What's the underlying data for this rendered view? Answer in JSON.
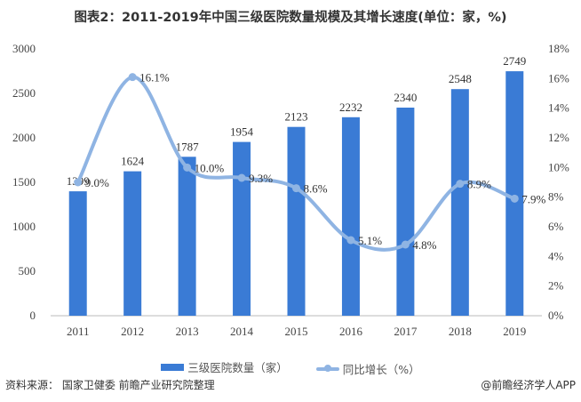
{
  "title": "图表2：2011-2019年中国三级医院数量规模及其增长速度(单位：家，%)",
  "chart_data": {
    "type": "bar+line",
    "categories": [
      "2011",
      "2012",
      "2013",
      "2014",
      "2015",
      "2016",
      "2017",
      "2018",
      "2019"
    ],
    "series": [
      {
        "name": "三级医院数量（家）",
        "type": "bar",
        "axis": "left",
        "color": "#3a7bd5",
        "values": [
          1399,
          1624,
          1787,
          1954,
          2123,
          2232,
          2340,
          2548,
          2749
        ],
        "labels": [
          "1399",
          "1624",
          "1787",
          "1954",
          "2123",
          "2232",
          "2340",
          "2548",
          "2749"
        ]
      },
      {
        "name": "同比增长（%）",
        "type": "line",
        "axis": "right",
        "color": "#8fb4e3",
        "smooth": true,
        "values": [
          9.0,
          16.1,
          10.0,
          9.3,
          8.6,
          5.1,
          4.8,
          8.9,
          7.9
        ],
        "labels": [
          "9.0%",
          "16.1%",
          "10.0%",
          "9.3%",
          "8.6%",
          "5.1%",
          "4.8%",
          "8.9%",
          "7.9%"
        ]
      }
    ],
    "left_axis": {
      "ylim": [
        0,
        3000
      ],
      "ticks": [
        "0",
        "500",
        "1000",
        "1500",
        "2000",
        "2500",
        "3000"
      ]
    },
    "right_axis": {
      "ylim": [
        0,
        18
      ],
      "ticks": [
        "0%",
        "2%",
        "4%",
        "6%",
        "8%",
        "10%",
        "12%",
        "14%",
        "16%",
        "18%"
      ]
    },
    "grid": false,
    "legend": "bottom"
  },
  "source": "资料来源： 国家卫健委 前瞻产业研究院整理",
  "credit": "@前瞻经济学人APP"
}
